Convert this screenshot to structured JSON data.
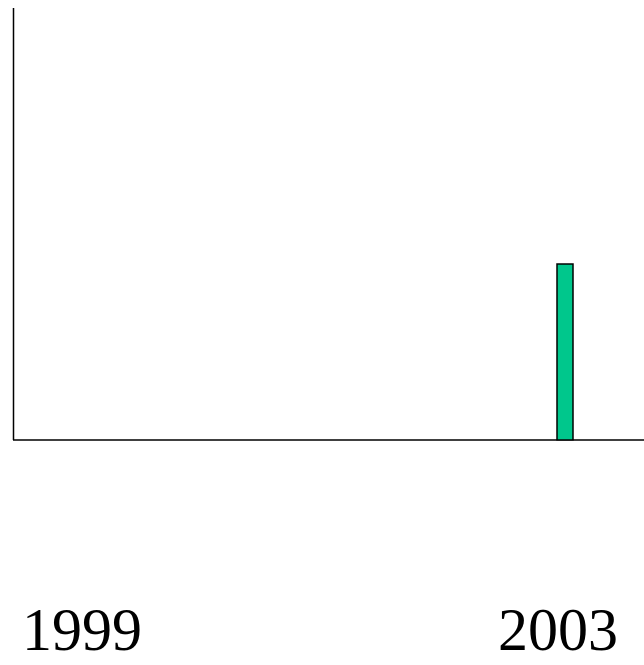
{
  "chart_data": {
    "type": "bar",
    "x_range": [
      1999,
      2003
    ],
    "tick_labels": [
      "1999",
      "2003"
    ],
    "bars": [
      {
        "x": 2003,
        "value": 0.4
      }
    ],
    "ylim": [
      0,
      1
    ],
    "grid": false,
    "legend": "none",
    "title": "",
    "xlabel": "",
    "ylabel": "",
    "colors": {
      "bar_fill": "#00c78c",
      "bar_stroke": "#000000",
      "axis": "#000000",
      "background": "#ffffff"
    }
  }
}
